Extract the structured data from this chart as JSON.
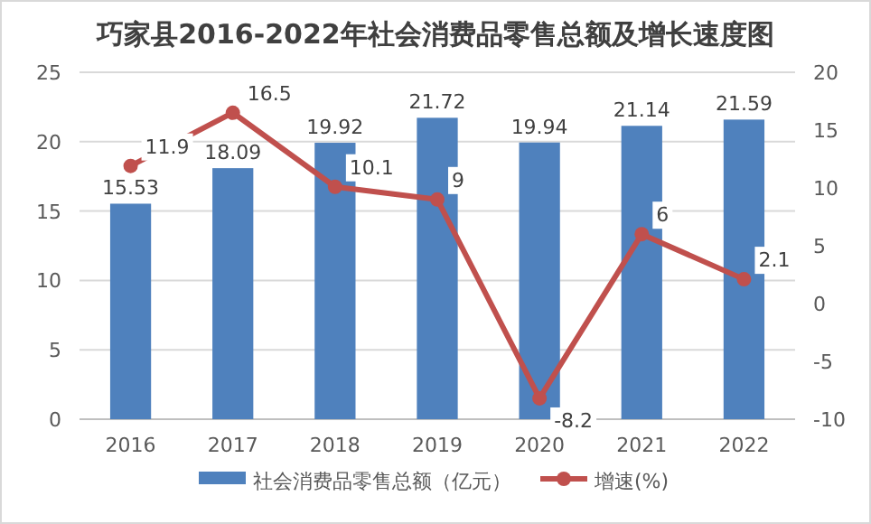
{
  "chart_data": {
    "type": "bar",
    "title": "巧家县2016-2022年社会消费品零售总额及增长速度图",
    "categories": [
      "2016",
      "2017",
      "2018",
      "2019",
      "2020",
      "2021",
      "2022"
    ],
    "series": [
      {
        "name": "社会消费品零售总额（亿元）",
        "color": "#4f81bd",
        "values": [
          15.53,
          18.09,
          19.92,
          21.72,
          19.94,
          21.14,
          21.59
        ]
      },
      {
        "name": "增速(%)",
        "type": "line",
        "axis": "y2",
        "color": "#c0504d",
        "marker": "circle",
        "values": [
          11.9,
          16.5,
          10.1,
          9,
          -8.2,
          6,
          2.1
        ]
      }
    ],
    "ylim": [
      0,
      25
    ],
    "yticks": [
      0,
      5,
      10,
      15,
      20,
      25
    ],
    "y2lim": [
      -10,
      20
    ],
    "y2ticks": [
      -10,
      -5,
      0,
      5,
      10,
      15,
      20
    ],
    "grid": "y",
    "legend": "bottom",
    "data_labels": true
  }
}
